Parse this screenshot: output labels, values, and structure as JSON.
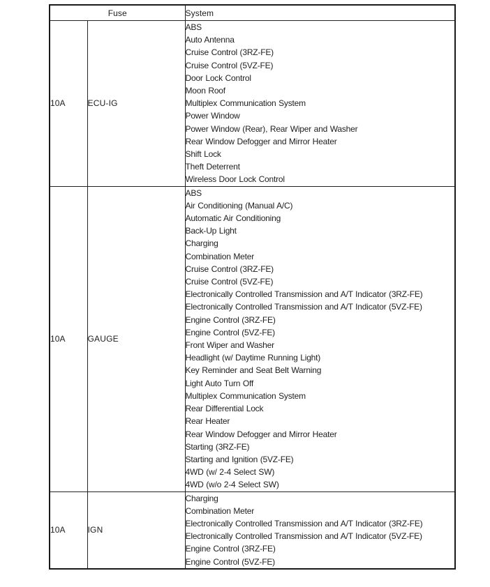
{
  "table": {
    "headers": {
      "fuse": "Fuse",
      "system": "System"
    },
    "rows": [
      {
        "amp": "10A",
        "name": "ECU-IG",
        "systems": [
          "ABS",
          "Auto Antenna",
          "Cruise Control (3RZ-FE)",
          "Cruise Control (5VZ-FE)",
          "Door Lock Control",
          "Moon Roof",
          "Multiplex Communication System",
          "Power Window",
          "Power Window (Rear), Rear Wiper and Washer",
          "Rear Window Defogger and Mirror Heater",
          "Shift Lock",
          "Theft Deterrent",
          "Wireless Door Lock Control"
        ]
      },
      {
        "amp": "10A",
        "name": "GAUGE",
        "systems": [
          "ABS",
          "Air Conditioning (Manual A/C)",
          "Automatic Air Conditioning",
          "Back-Up Light",
          "Charging",
          "Combination Meter",
          "Cruise Control (3RZ-FE)",
          "Cruise Control (5VZ-FE)",
          "Electronically Controlled Transmission and A/T Indicator (3RZ-FE)",
          "Electronically Controlled Transmission and A/T Indicator (5VZ-FE)",
          "Engine Control (3RZ-FE)",
          "Engine Control (5VZ-FE)",
          "Front Wiper and Washer",
          "Headlight (w/ Daytime Running Light)",
          "Key Reminder and Seat Belt Warning",
          "Light Auto Turn Off",
          "Multiplex Communication System",
          "Rear Differential Lock",
          "Rear Heater",
          "Rear Window Defogger and Mirror Heater",
          "Starting (3RZ-FE)",
          "Starting and Ignition (5VZ-FE)",
          "4WD (w/ 2-4 Select SW)",
          "4WD (w/o 2-4 Select SW)"
        ]
      },
      {
        "amp": "10A",
        "name": "IGN",
        "systems": [
          "Charging",
          "Combination Meter",
          "Electronically Controlled Transmission and A/T Indicator (3RZ-FE)",
          "Electronically Controlled Transmission and A/T Indicator (5VZ-FE)",
          "Engine Control (3RZ-FE)",
          "Engine Control (5VZ-FE)"
        ]
      }
    ],
    "colors": {
      "border": "#1a1a1a",
      "text": "#1e1e1e",
      "background": "#ffffff"
    }
  }
}
